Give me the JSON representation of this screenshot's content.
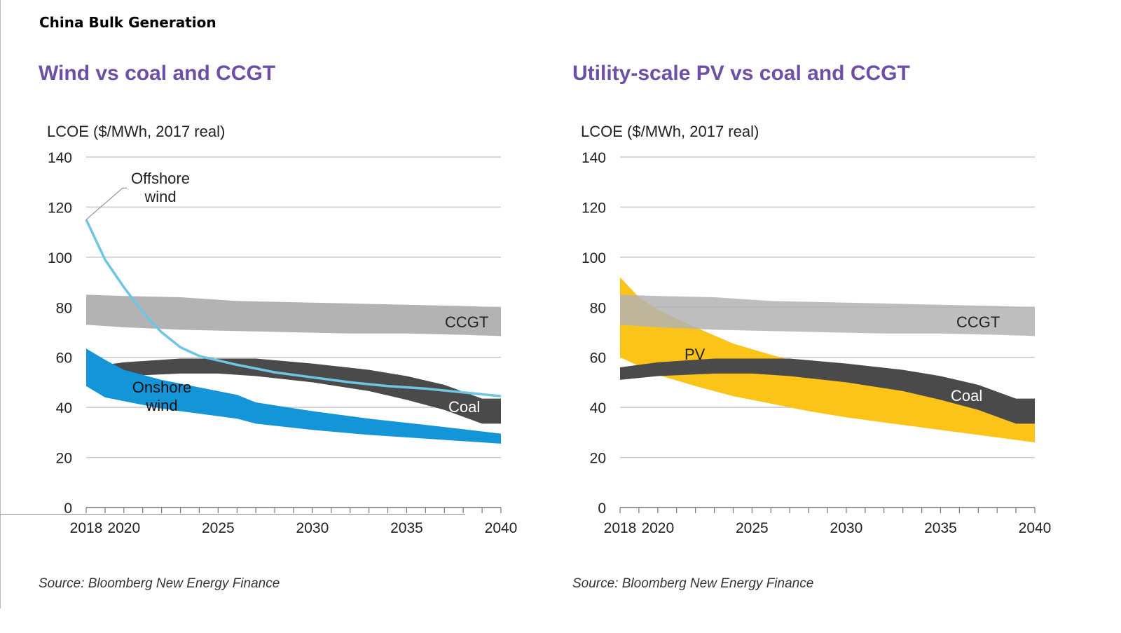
{
  "page_title": "China Bulk Generation",
  "colors": {
    "title_purple": "#6d50a6",
    "ccgt": "#b3b3b3",
    "coal": "#4a4a4a",
    "onshore_wind": "#1495d8",
    "offshore_wind": "#6ec6e4",
    "pv": "#fcc419",
    "gridline": "#c8c8c8"
  },
  "chart_data": [
    {
      "type": "area",
      "title": "Wind vs coal and CCGT",
      "ylabel": "LCOE ($/MWh, 2017 real)",
      "xlabel": "",
      "ylim": [
        0,
        140
      ],
      "xlim": [
        2018,
        2040
      ],
      "yticks": [
        "0",
        "20",
        "40",
        "60",
        "80",
        "100",
        "120",
        "140"
      ],
      "xticks": [
        "2018",
        "2020",
        "2025",
        "2030",
        "2035",
        "2040"
      ],
      "source": "Source: Bloomberg New Energy Finance",
      "bands": [
        {
          "name": "CCGT",
          "label": "CCGT",
          "color": "#b3b3b3",
          "x": [
            2018,
            2020,
            2023,
            2026,
            2029,
            2032,
            2035,
            2038,
            2040
          ],
          "upper": [
            85,
            84.5,
            84,
            82.5,
            82,
            81.5,
            81,
            80.5,
            80
          ],
          "lower": [
            73,
            72,
            71,
            70.5,
            70,
            69.5,
            69.5,
            69,
            68.5
          ]
        },
        {
          "name": "Coal",
          "label": "Coal",
          "color": "#4a4a4a",
          "x": [
            2018,
            2020,
            2023,
            2025,
            2027,
            2030,
            2033,
            2035,
            2037,
            2039,
            2040
          ],
          "upper": [
            56,
            58,
            59.5,
            59.5,
            59.5,
            57.5,
            55,
            52.5,
            49,
            43.5,
            43.5
          ],
          "lower": [
            51,
            52.5,
            53.5,
            53.5,
            52.5,
            50,
            46.5,
            43,
            39,
            33.5,
            33.5
          ]
        },
        {
          "name": "Onshore wind",
          "label": "Onshore wind",
          "color": "#1495d8",
          "x": [
            2018,
            2019,
            2020,
            2022,
            2024,
            2026,
            2027,
            2030,
            2033,
            2036,
            2040
          ],
          "upper": [
            63.5,
            59,
            55,
            51,
            48,
            45,
            42,
            38.5,
            35.5,
            33,
            29.5
          ],
          "lower": [
            48.5,
            44,
            42.5,
            39.5,
            37.5,
            35.5,
            33.5,
            31,
            29,
            27.5,
            25.5
          ]
        }
      ],
      "series": [
        {
          "name": "Offshore wind",
          "label": "Offshore wind",
          "color": "#6ec6e4",
          "x": [
            2018,
            2019,
            2020,
            2021,
            2022,
            2023,
            2024,
            2026,
            2028,
            2030,
            2032,
            2034,
            2036,
            2038,
            2040
          ],
          "values": [
            115,
            99,
            88,
            78,
            70,
            64,
            60.5,
            57,
            54,
            52,
            50,
            48.5,
            47.5,
            46,
            44.5
          ]
        }
      ],
      "annotations": [
        "CCGT",
        "Offshore",
        "wind",
        "Onshore",
        "wind",
        "Coal"
      ]
    },
    {
      "type": "area",
      "title": "Utility-scale  PV vs coal and CCGT",
      "ylabel": "LCOE ($/MWh, 2017 real)",
      "xlabel": "",
      "ylim": [
        0,
        140
      ],
      "xlim": [
        2018,
        2040
      ],
      "yticks": [
        "0",
        "20",
        "40",
        "60",
        "80",
        "100",
        "120",
        "140"
      ],
      "xticks": [
        "2018",
        "2020",
        "2025",
        "2030",
        "2035",
        "2040"
      ],
      "source": "Source: Bloomberg New Energy Finance",
      "bands": [
        {
          "name": "PV",
          "label": "PV",
          "color": "#fcc419",
          "x": [
            2018,
            2019,
            2020,
            2022,
            2024,
            2026,
            2028,
            2030,
            2032,
            2034,
            2036,
            2038,
            2040
          ],
          "upper": [
            92,
            84,
            79,
            72,
            65.5,
            61,
            57,
            54,
            51,
            48,
            45,
            39,
            34
          ],
          "lower": [
            60,
            56.5,
            53,
            48.5,
            44.5,
            41.5,
            38.5,
            36,
            34,
            32,
            30,
            28,
            26
          ]
        },
        {
          "name": "CCGT",
          "label": "CCGT",
          "color": "#b3b3b3",
          "alpha": 0.85,
          "x": [
            2018,
            2020,
            2023,
            2026,
            2029,
            2032,
            2035,
            2038,
            2040
          ],
          "upper": [
            85,
            84.5,
            84,
            82.5,
            82,
            81.5,
            81,
            80.5,
            80
          ],
          "lower": [
            73,
            72,
            71,
            70.5,
            70,
            69.5,
            69.5,
            69,
            68.5
          ]
        },
        {
          "name": "Coal",
          "label": "Coal",
          "color": "#4a4a4a",
          "x": [
            2018,
            2020,
            2023,
            2025,
            2027,
            2030,
            2033,
            2035,
            2037,
            2039,
            2040
          ],
          "upper": [
            56,
            58,
            59.5,
            59.5,
            59.5,
            57.5,
            55,
            52.5,
            49,
            43.5,
            43.5
          ],
          "lower": [
            51,
            52.5,
            53.5,
            53.5,
            52.5,
            50,
            46.5,
            43,
            39,
            33.5,
            33.5
          ]
        }
      ],
      "series": [],
      "annotations": [
        "CCGT",
        "PV",
        "Coal"
      ]
    }
  ]
}
